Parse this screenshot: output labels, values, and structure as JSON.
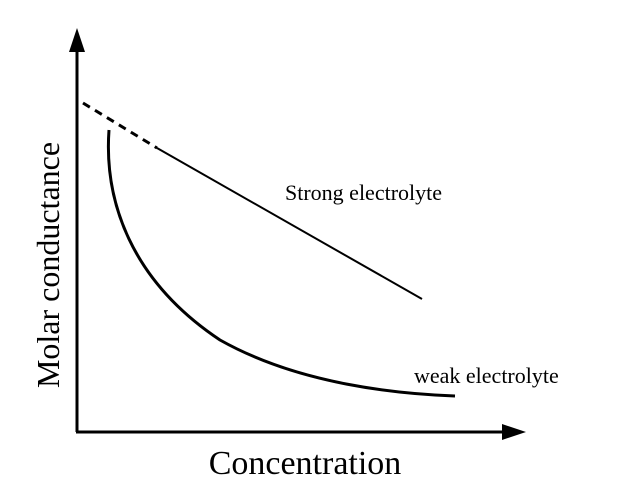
{
  "axes": {
    "x_label": "Concentration",
    "y_label": "Molar conductance"
  },
  "curves": [
    {
      "label": "Strong electrolyte"
    },
    {
      "label": "weak electrolyte"
    }
  ]
}
